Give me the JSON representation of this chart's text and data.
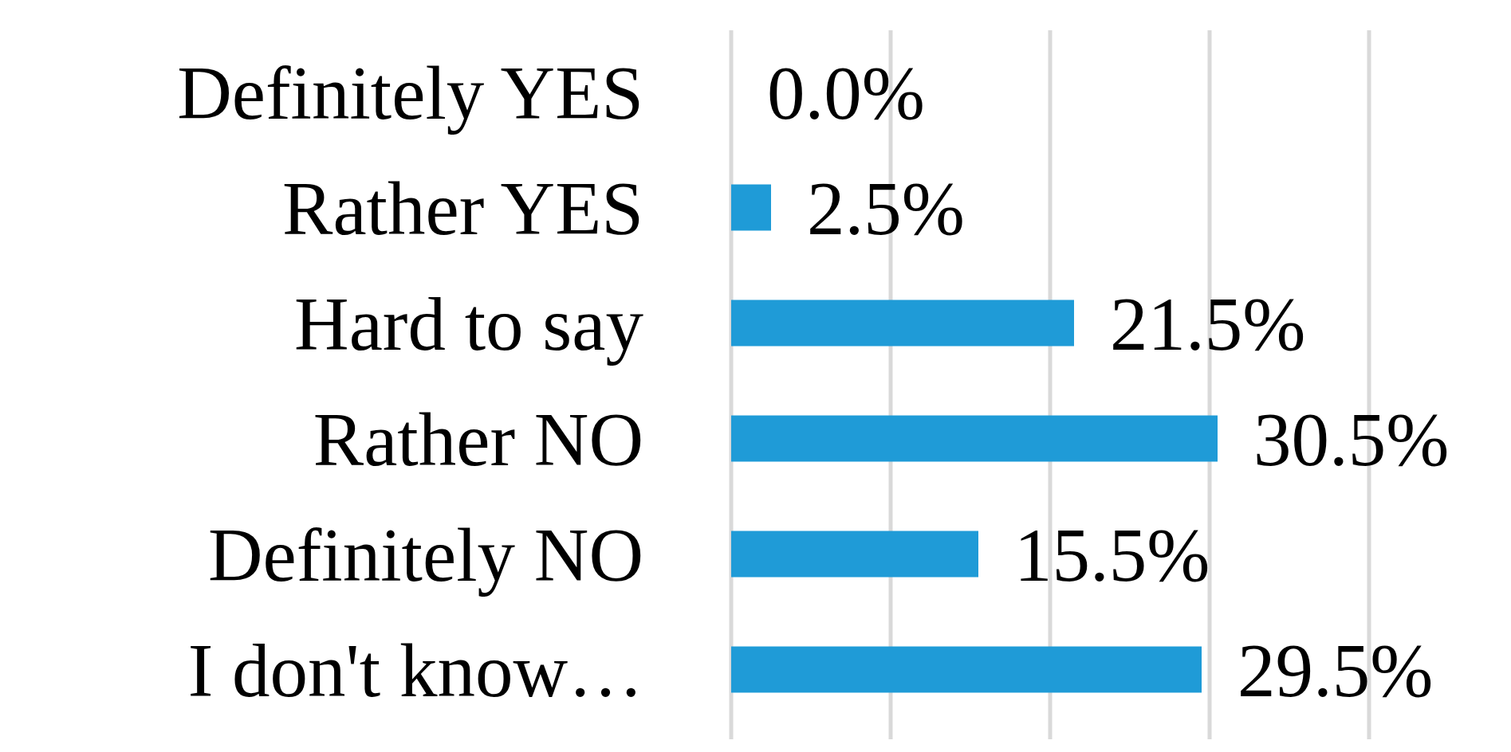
{
  "chart_data": {
    "type": "bar",
    "orientation": "horizontal",
    "categories": [
      "Definitely YES",
      "Rather YES",
      "Hard to say",
      "Rather NO",
      "Definitely NO",
      "I don't know…"
    ],
    "values": [
      0,
      2.5,
      21.5,
      30.5,
      15.5,
      29.5
    ],
    "value_labels": [
      "0.0%",
      "2.5%",
      "21.5%",
      "30.5%",
      "15.5%",
      "29.5%"
    ],
    "color": "#1f9bd7",
    "xlim": [
      0,
      40
    ],
    "xticks": [
      {
        "value": 0,
        "label": null
      },
      {
        "value": 10,
        "label": null
      },
      {
        "value": 20,
        "label": null
      },
      {
        "value": 30,
        "label": null
      },
      {
        "value": 40,
        "label": null
      }
    ],
    "grid": "x",
    "tick_labels": "y"
  }
}
